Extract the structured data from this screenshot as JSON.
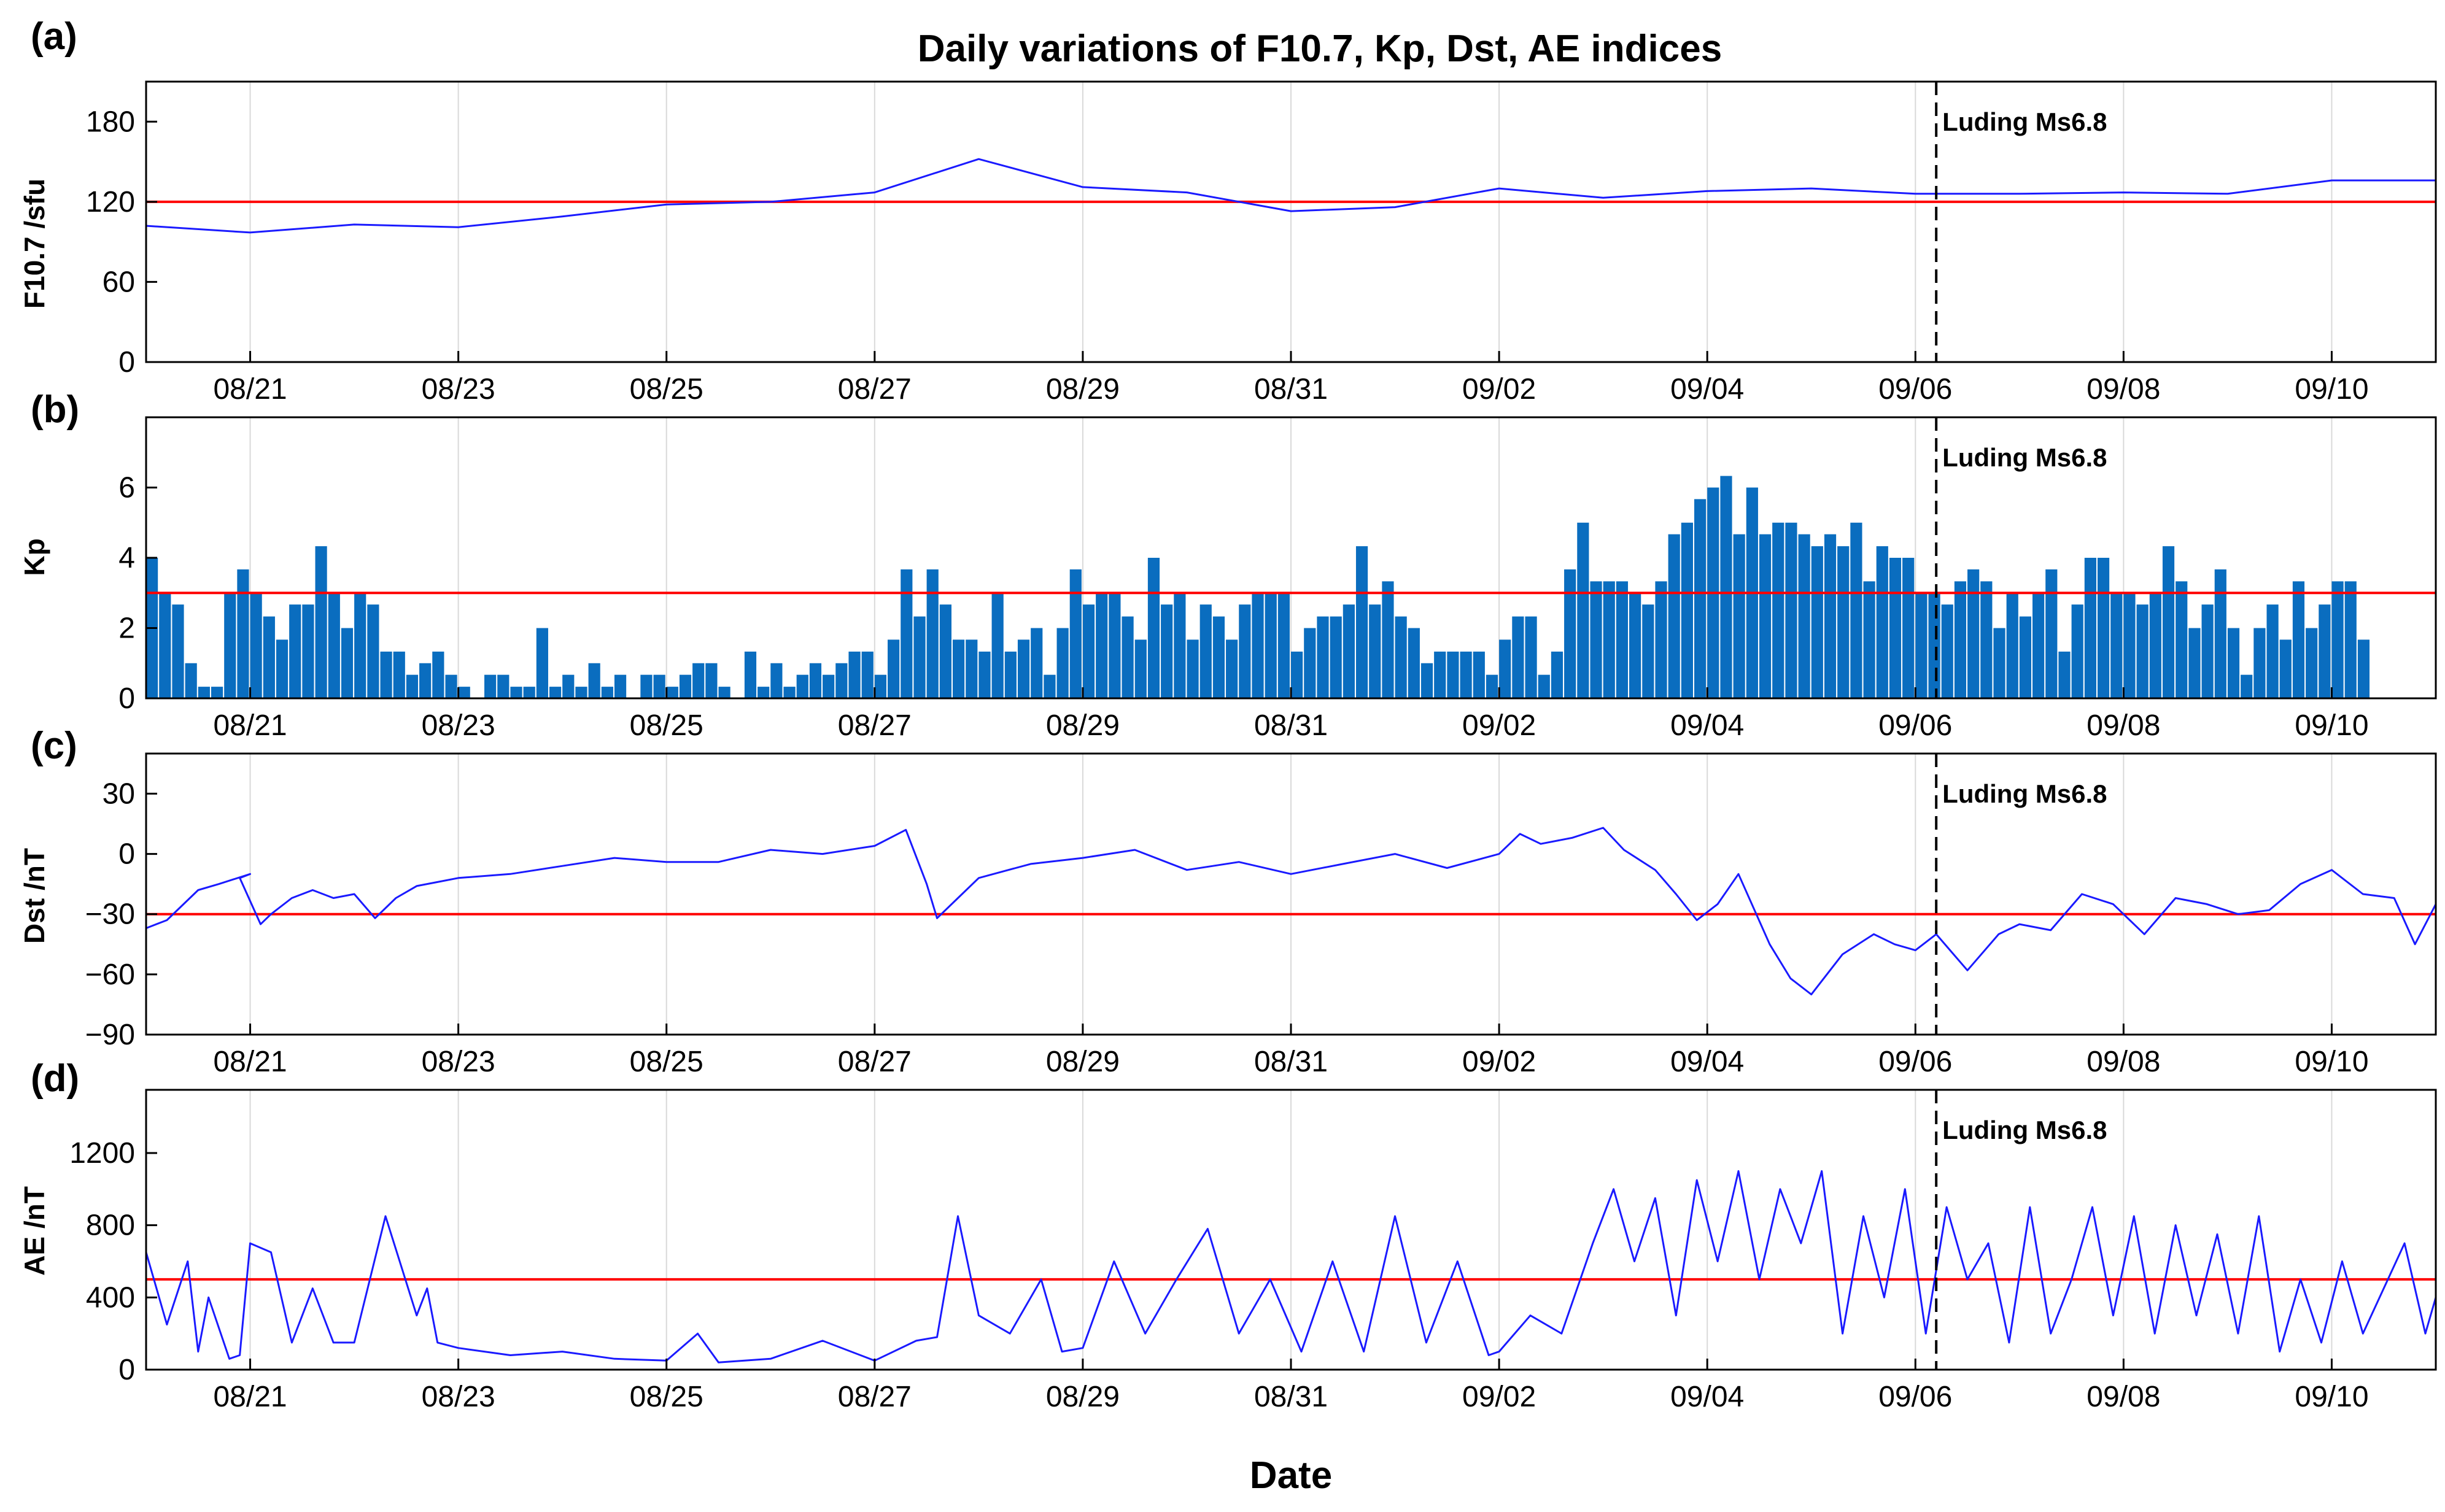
{
  "chart_data": {
    "title": "Daily variations of F10.7, Kp, Dst, AE indices",
    "xlabel": "Date",
    "event_label": "Luding Ms6.8",
    "event_day": 16.2,
    "x_range": [
      -1,
      21
    ],
    "date_ticks": [
      {
        "day": 0,
        "label": "08/21"
      },
      {
        "day": 2,
        "label": "08/23"
      },
      {
        "day": 4,
        "label": "08/25"
      },
      {
        "day": 6,
        "label": "08/27"
      },
      {
        "day": 8,
        "label": "08/29"
      },
      {
        "day": 10,
        "label": "08/31"
      },
      {
        "day": 12,
        "label": "09/02"
      },
      {
        "day": 14,
        "label": "09/04"
      },
      {
        "day": 16,
        "label": "09/06"
      },
      {
        "day": 18,
        "label": "09/08"
      },
      {
        "day": 20,
        "label": "09/10"
      }
    ],
    "panels": [
      {
        "id": "a",
        "panel_label": "(a)",
        "type": "line",
        "ylabel": "F10.7 /sfu",
        "ylim": [
          0,
          210
        ],
        "yticks": [
          0,
          60,
          120,
          180
        ],
        "ytick_labels": [
          "0",
          "60",
          "120",
          "180"
        ],
        "threshold": 120,
        "x": [
          -1,
          0,
          1,
          2,
          3,
          4,
          5,
          6,
          7,
          8,
          9,
          10,
          11,
          12,
          13,
          14,
          15,
          16,
          17,
          18,
          19,
          20,
          21
        ],
        "values": [
          102,
          97,
          103,
          101,
          109,
          118,
          120,
          127,
          152,
          131,
          127,
          113,
          116,
          130,
          123,
          128,
          130,
          126,
          126,
          127,
          126,
          136,
          136
        ]
      },
      {
        "id": "b",
        "panel_label": "(b)",
        "type": "bar",
        "ylabel": "Kp",
        "ylim": [
          0,
          8
        ],
        "yticks": [
          0,
          2,
          4,
          6
        ],
        "ytick_labels": [
          "0",
          "2",
          "4",
          "6"
        ],
        "threshold": 3,
        "bar_start": -1,
        "bar_width": 0.125,
        "values": [
          4.0,
          3.0,
          2.67,
          1.0,
          0.33,
          0.33,
          3.0,
          3.67,
          3.0,
          2.33,
          1.67,
          2.67,
          2.67,
          4.33,
          3.0,
          2.0,
          3.0,
          2.67,
          1.33,
          1.33,
          0.67,
          1.0,
          1.33,
          0.67,
          0.33,
          0.0,
          0.67,
          0.67,
          0.33,
          0.33,
          2.0,
          0.33,
          0.67,
          0.33,
          1.0,
          0.33,
          0.67,
          0.0,
          0.67,
          0.67,
          0.33,
          0.67,
          1.0,
          1.0,
          0.33,
          0.0,
          1.33,
          0.33,
          1.0,
          0.33,
          0.67,
          1.0,
          0.67,
          1.0,
          1.33,
          1.33,
          0.67,
          1.67,
          3.67,
          2.33,
          3.67,
          2.67,
          1.67,
          1.67,
          1.33,
          3.0,
          1.33,
          1.67,
          2.0,
          0.67,
          2.0,
          3.67,
          2.67,
          3.0,
          3.0,
          2.33,
          1.67,
          4.0,
          2.67,
          3.0,
          1.67,
          2.67,
          2.33,
          1.67,
          2.67,
          3.0,
          3.0,
          3.0,
          1.33,
          2.0,
          2.33,
          2.33,
          2.67,
          4.33,
          2.67,
          3.33,
          2.33,
          2.0,
          1.0,
          1.33,
          1.33,
          1.33,
          1.33,
          0.67,
          1.67,
          2.33,
          2.33,
          0.67,
          1.33,
          3.67,
          5.0,
          3.33,
          3.33,
          3.33,
          3.0,
          2.67,
          3.33,
          4.67,
          5.0,
          5.67,
          6.0,
          6.33,
          4.67,
          6.0,
          4.67,
          5.0,
          5.0,
          4.67,
          4.33,
          4.67,
          4.33,
          5.0,
          3.33,
          4.33,
          4.0,
          4.0,
          3.0,
          3.0,
          2.67,
          3.33,
          3.67,
          3.33,
          2.0,
          3.0,
          2.33,
          3.0,
          3.67,
          1.33,
          2.67,
          4.0,
          4.0,
          3.0,
          3.0,
          2.67,
          3.0,
          4.33,
          3.33,
          2.0,
          2.67,
          3.67,
          2.0,
          0.67,
          2.0,
          2.67,
          1.67,
          3.33,
          2.0,
          2.67,
          3.33,
          3.33,
          1.67
        ]
      },
      {
        "id": "c",
        "panel_label": "(c)",
        "type": "line",
        "ylabel": "Dst /nT",
        "ylim": [
          -90,
          50
        ],
        "yticks": [
          -90,
          -60,
          -30,
          0,
          30
        ],
        "ytick_labels": [
          "−90",
          "−60",
          "−30",
          "0",
          "30"
        ],
        "threshold": -30,
        "x": [
          -1,
          -0.8,
          -0.5,
          -0.3,
          0,
          -0.1,
          0.1,
          0.2,
          0.4,
          0.6,
          0.8,
          1,
          1.2,
          1.4,
          1.6,
          1.8,
          2,
          2.5,
          3,
          3.5,
          4,
          4.5,
          5,
          5.5,
          6,
          6.3,
          6.5,
          6.6,
          6.8,
          7,
          7.5,
          8,
          8.5,
          9,
          9.5,
          10,
          10.5,
          11,
          11.5,
          12,
          12.2,
          12.4,
          12.7,
          13,
          13.2,
          13.5,
          13.7,
          13.9,
          14.1,
          14.3,
          14.6,
          14.8,
          15,
          15.3,
          15.6,
          15.8,
          16,
          16.2,
          16.5,
          16.8,
          17,
          17.3,
          17.6,
          17.9,
          18.2,
          18.5,
          18.8,
          19.1,
          19.4,
          19.7,
          20,
          20.3,
          20.6,
          20.8,
          21
        ],
        "values": [
          -37,
          -33,
          -18,
          -15,
          -10,
          -12,
          -35,
          -30,
          -22,
          -18,
          -22,
          -20,
          -32,
          -22,
          -16,
          -14,
          -12,
          -10,
          -6,
          -2,
          -4,
          -4,
          2,
          0,
          4,
          12,
          -15,
          -32,
          -22,
          -12,
          -5,
          -2,
          2,
          -8,
          -4,
          -10,
          -5,
          0,
          -7,
          0,
          10,
          5,
          8,
          13,
          2,
          -8,
          -20,
          -33,
          -25,
          -10,
          -45,
          -62,
          -70,
          -50,
          -40,
          -45,
          -48,
          -40,
          -58,
          -40,
          -35,
          -38,
          -20,
          -25,
          -40,
          -22,
          -25,
          -30,
          -28,
          -15,
          -8,
          -20,
          -22,
          -45,
          -25
        ]
      },
      {
        "id": "d",
        "panel_label": "(d)",
        "type": "line",
        "ylabel": "AE /nT",
        "ylim": [
          0,
          1550
        ],
        "yticks": [
          0,
          400,
          800,
          1200
        ],
        "ytick_labels": [
          "0",
          "400",
          "800",
          "1200"
        ],
        "threshold": 500,
        "x": [
          -1,
          -0.8,
          -0.6,
          -0.5,
          -0.4,
          -0.2,
          -0.1,
          0,
          0.2,
          0.4,
          0.6,
          0.8,
          1,
          1.3,
          1.6,
          1.7,
          1.8,
          2,
          2.5,
          3,
          3.5,
          4,
          4.3,
          4.5,
          5,
          5.5,
          6,
          6.4,
          6.6,
          6.8,
          7,
          7.3,
          7.6,
          7.8,
          8,
          8.3,
          8.6,
          8.9,
          9.2,
          9.5,
          9.8,
          10.1,
          10.4,
          10.7,
          11,
          11.3,
          11.6,
          11.9,
          12,
          12.3,
          12.6,
          12.9,
          13.1,
          13.3,
          13.5,
          13.7,
          13.9,
          14.1,
          14.3,
          14.5,
          14.7,
          14.9,
          15.1,
          15.3,
          15.5,
          15.7,
          15.9,
          16.1,
          16.3,
          16.5,
          16.7,
          16.9,
          17.1,
          17.3,
          17.5,
          17.7,
          17.9,
          18.1,
          18.3,
          18.5,
          18.7,
          18.9,
          19.1,
          19.3,
          19.5,
          19.7,
          19.9,
          20.1,
          20.3,
          20.5,
          20.7,
          20.9,
          21
        ],
        "values": [
          650,
          250,
          600,
          100,
          400,
          60,
          80,
          700,
          650,
          150,
          450,
          150,
          150,
          850,
          300,
          450,
          150,
          120,
          80,
          100,
          60,
          50,
          200,
          40,
          60,
          160,
          50,
          160,
          180,
          850,
          300,
          200,
          500,
          100,
          120,
          600,
          200,
          500,
          780,
          200,
          500,
          100,
          600,
          100,
          850,
          150,
          600,
          80,
          100,
          300,
          200,
          700,
          1000,
          600,
          950,
          300,
          1050,
          600,
          1100,
          500,
          1000,
          700,
          1100,
          200,
          850,
          400,
          1000,
          200,
          900,
          500,
          700,
          150,
          900,
          200,
          500,
          900,
          300,
          850,
          200,
          800,
          300,
          750,
          200,
          850,
          100,
          500,
          150,
          600,
          200,
          450,
          700,
          200,
          400
        ]
      }
    ]
  }
}
